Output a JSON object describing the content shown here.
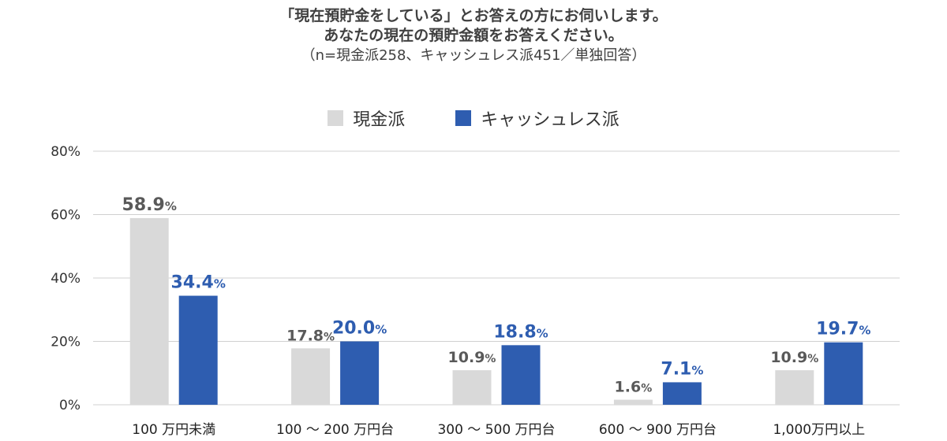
{
  "chart_data": {
    "type": "bar",
    "title_lines": [
      "「現在預貯金をしている」とお答えの方にお伺いします。",
      "あなたの現在の預貯金額をお答えください。"
    ],
    "subtitle": "（n=現金派258、キャッシュレス派451／単独回答）",
    "categories": [
      "100 万円未満",
      "100 ～ 200 万円台",
      "300 ～ 500 万円台",
      "600 ～ 900 万円台",
      "1,000万円以上"
    ],
    "series": [
      {
        "name": "現金派",
        "values": [
          58.9,
          17.8,
          10.9,
          1.6,
          10.9
        ],
        "color": "#d9d9d9",
        "label_color": "#595959"
      },
      {
        "name": "キャッシュレス派",
        "values": [
          34.4,
          20.0,
          18.8,
          7.1,
          19.7
        ],
        "color": "#2e5db0",
        "label_color": "#2e5db0"
      }
    ],
    "value_suffix": "%",
    "yticks": [
      "0%",
      "20%",
      "40%",
      "60%",
      "80%"
    ],
    "ylim": [
      0,
      80
    ],
    "grid": true,
    "legend_position": "top-center"
  }
}
